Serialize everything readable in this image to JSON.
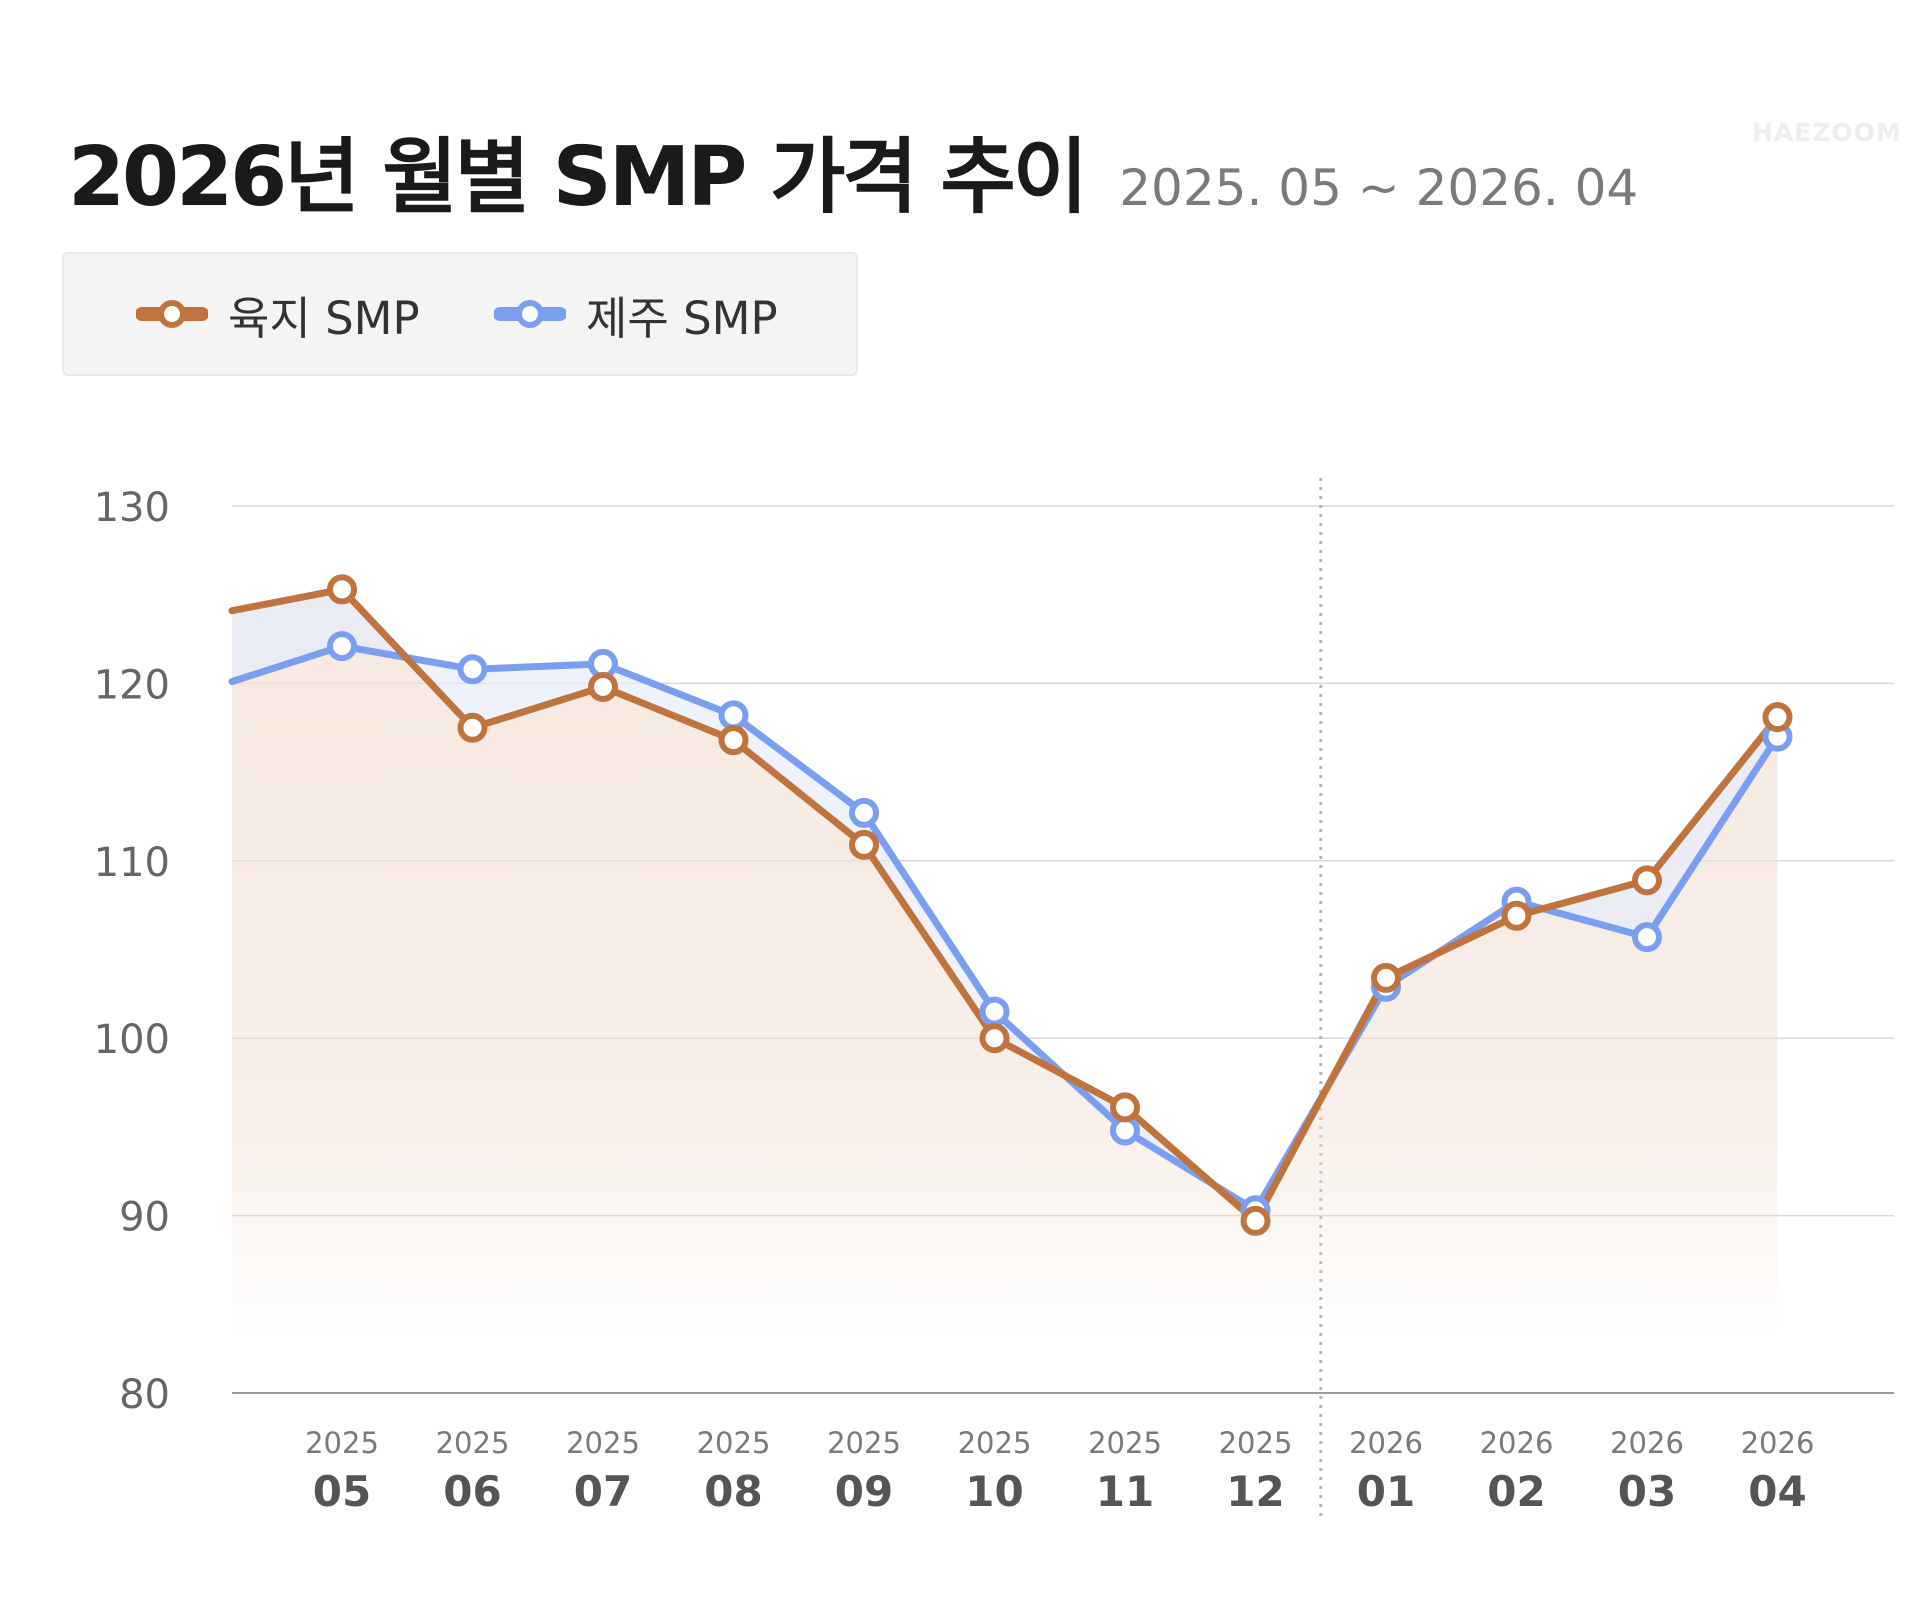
{
  "header": {
    "title": "2026년 월별 SMP 가격 추이",
    "subtitle": "2025. 05 ~ 2026. 04",
    "watermark": "HAEZOOM"
  },
  "colors": {
    "land": "#c0733c",
    "jeju": "#7b9ff0",
    "land_fill": "#f3e2d6",
    "jeju_fill": "#e6edfb",
    "grid": "#d8d8d8",
    "axis_text": "#666666"
  },
  "chart_data": {
    "type": "line",
    "title": "2026년 월별 SMP 가격 추이",
    "subtitle": "2025. 05 ~ 2026. 04",
    "categories": [
      {
        "year": "2025",
        "month": "05"
      },
      {
        "year": "2025",
        "month": "06"
      },
      {
        "year": "2025",
        "month": "07"
      },
      {
        "year": "2025",
        "month": "08"
      },
      {
        "year": "2025",
        "month": "09"
      },
      {
        "year": "2025",
        "month": "10"
      },
      {
        "year": "2025",
        "month": "11"
      },
      {
        "year": "2025",
        "month": "12"
      },
      {
        "year": "2026",
        "month": "01"
      },
      {
        "year": "2026",
        "month": "02"
      },
      {
        "year": "2026",
        "month": "03"
      },
      {
        "year": "2026",
        "month": "04"
      }
    ],
    "series": [
      {
        "name": "육지 SMP",
        "color": "#c0733c",
        "values": [
          125.3,
          117.5,
          119.8,
          116.8,
          110.9,
          100.0,
          96.1,
          89.7,
          103.4,
          106.9,
          108.9,
          118.1
        ]
      },
      {
        "name": "제주 SMP",
        "color": "#7b9ff0",
        "values": [
          122.1,
          120.8,
          121.1,
          118.2,
          112.7,
          101.5,
          94.8,
          90.3,
          102.9,
          107.7,
          105.7,
          117.0
        ]
      }
    ],
    "lead_in": {
      "육지 SMP": 124.1,
      "제주 SMP": 120.1
    },
    "ylim": [
      80,
      130
    ],
    "yticks": [
      80,
      90,
      100,
      110,
      120,
      130
    ],
    "grid": true,
    "legend": "top-left",
    "divider_between": [
      "2025-12",
      "2026-01"
    ]
  }
}
